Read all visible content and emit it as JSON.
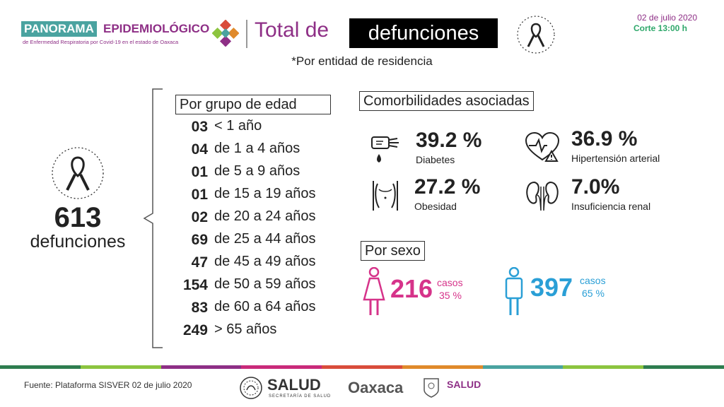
{
  "header": {
    "logo_word1": "PANORAMA",
    "logo_word2": "EPIDEMIOLÓGICO",
    "logo_sub": "de Enfermedad Respiratoria por Covid-19 en el estado de Oaxaca",
    "title_prefix": "Total de",
    "title_box": "defunciones",
    "date": "02 de julio 2020",
    "cutoff": "Corte 13:00 h",
    "subtitle": "*Por entidad de residencia"
  },
  "total": {
    "value": "613",
    "label": "defunciones"
  },
  "age_group": {
    "header": "Por grupo de edad",
    "rows": [
      {
        "count": "03",
        "range": "< 1 año"
      },
      {
        "count": "04",
        "range": "de 1 a 4 años"
      },
      {
        "count": "01",
        "range": "de 5 a 9 años"
      },
      {
        "count": "01",
        "range": "de 15 a 19 años"
      },
      {
        "count": "02",
        "range": "de 20 a 24 años"
      },
      {
        "count": "69",
        "range": "de 25 a 44 años"
      },
      {
        "count": "47",
        "range": "de 45 a 49 años"
      },
      {
        "count": "154",
        "range": "de 50 a 59 años"
      },
      {
        "count": "83",
        "range": "de 60 a 64 años"
      },
      {
        "count": "249",
        "range": "> 65 años"
      }
    ]
  },
  "comorbidities": {
    "header": "Comorbilidades asociadas",
    "items": [
      {
        "pct": "39.2 %",
        "name": "Diabetes",
        "icon": "glucose-meter-icon"
      },
      {
        "pct": "36.9 %",
        "name": "Hipertensión arterial",
        "icon": "heart-warning-icon"
      },
      {
        "pct": "27.2 %",
        "name": "Obesidad",
        "icon": "body-obesity-icon"
      },
      {
        "pct": "7.0%",
        "name": "Insuficiencia renal",
        "icon": "kidneys-icon"
      }
    ]
  },
  "sex": {
    "header": "Por sexo",
    "female": {
      "value": "216",
      "casos": "casos",
      "pct": "35 %",
      "color": "#d6338a"
    },
    "male": {
      "value": "397",
      "casos": "casos",
      "pct": "65 %",
      "color": "#2a9fd6"
    }
  },
  "footer": {
    "source": "Fuente: Plataforma SISVER 02 de julio 2020",
    "salud": "SALUD",
    "salud_sub": "SECRETARÍA DE SALUD",
    "oaxaca": "Oaxaca",
    "salud2": "SALUD"
  },
  "colors": {
    "purple": "#8e2f86",
    "teal": "#4aa3a0",
    "green": "#2fa86b",
    "stripe": [
      "#2e7d4f",
      "#8cc43f",
      "#8e2f86",
      "#c92a7a",
      "#d94c3b",
      "#e08a2b",
      "#4aa3a0",
      "#8cc43f",
      "#2e7d4f"
    ]
  }
}
